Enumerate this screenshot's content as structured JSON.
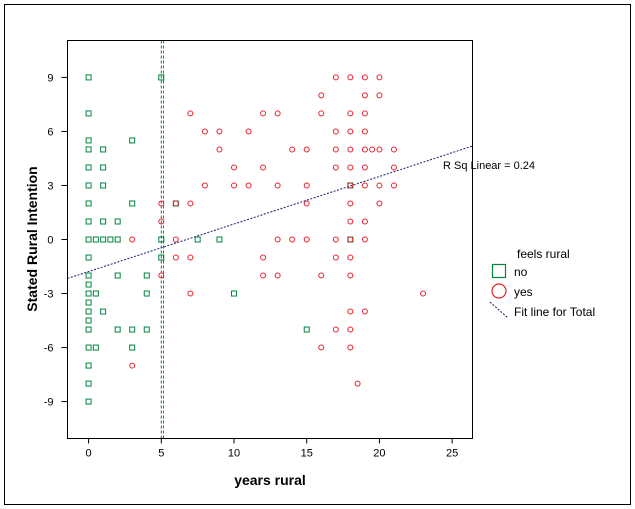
{
  "chart_data": {
    "type": "scatter",
    "title": "",
    "xlabel": "years rural",
    "ylabel": "Stated Rural Intention",
    "xlim": [
      -1.45,
      26.4
    ],
    "ylim": [
      -11.05,
      11.05
    ],
    "xticks": [
      0,
      5,
      10,
      15,
      20,
      25
    ],
    "yticks": [
      -9,
      -6,
      -3,
      0,
      3,
      6,
      9
    ],
    "grid": false,
    "legend": {
      "title": "feels rural",
      "placement": "right",
      "entries": [
        {
          "label": "no",
          "marker": "square",
          "color": "#00853e"
        },
        {
          "label": "yes",
          "marker": "circle",
          "color": "#e8202a"
        },
        {
          "label": "Fit line for Total",
          "marker": "dashed-line",
          "color": "#1a1a6e"
        }
      ]
    },
    "annotation": "R Sq Linear = 0.24",
    "fit_line": {
      "intercept": -1.78,
      "slope": 0.264,
      "color": "#1a1a6e"
    },
    "reference_lines": [
      {
        "x": 5.0,
        "color": "#00853e"
      },
      {
        "x": 5.15,
        "color": "#e8202a"
      }
    ],
    "series": [
      {
        "name": "no",
        "marker": "square",
        "color": "#00853e",
        "points": [
          [
            0,
            9
          ],
          [
            5,
            9
          ],
          [
            0,
            7
          ],
          [
            0,
            5.5
          ],
          [
            3,
            5.5
          ],
          [
            0,
            5
          ],
          [
            1,
            5
          ],
          [
            0,
            4
          ],
          [
            1,
            4
          ],
          [
            0,
            3
          ],
          [
            1,
            3
          ],
          [
            0,
            2
          ],
          [
            3,
            2
          ],
          [
            6,
            2
          ],
          [
            0,
            1
          ],
          [
            1,
            1
          ],
          [
            2,
            1
          ],
          [
            0,
            0
          ],
          [
            0.5,
            0
          ],
          [
            1,
            0
          ],
          [
            1.5,
            0
          ],
          [
            2,
            0
          ],
          [
            5,
            0
          ],
          [
            7.5,
            0
          ],
          [
            9,
            0
          ],
          [
            0,
            -1
          ],
          [
            5,
            -1
          ],
          [
            0,
            -2
          ],
          [
            2,
            -2
          ],
          [
            4,
            -2
          ],
          [
            0,
            -2.5
          ],
          [
            0,
            -3
          ],
          [
            0.5,
            -3
          ],
          [
            4,
            -3
          ],
          [
            10,
            -3
          ],
          [
            0,
            -3.5
          ],
          [
            0,
            -4
          ],
          [
            1,
            -4
          ],
          [
            0,
            -4.5
          ],
          [
            0,
            -5
          ],
          [
            2,
            -5
          ],
          [
            3,
            -5
          ],
          [
            4,
            -5
          ],
          [
            0,
            -6
          ],
          [
            0.5,
            -6
          ],
          [
            3,
            -6
          ],
          [
            0,
            -7
          ],
          [
            0,
            -8
          ],
          [
            0,
            -9
          ],
          [
            18,
            3
          ],
          [
            18,
            0
          ],
          [
            15,
            -5
          ]
        ]
      },
      {
        "name": "yes",
        "marker": "circle",
        "color": "#e8202a",
        "points": [
          [
            7,
            7
          ],
          [
            8,
            6
          ],
          [
            9,
            6
          ],
          [
            11,
            6
          ],
          [
            9,
            5
          ],
          [
            10,
            4
          ],
          [
            8,
            3
          ],
          [
            10,
            3
          ],
          [
            11,
            3
          ],
          [
            5,
            2
          ],
          [
            6,
            2
          ],
          [
            7,
            2
          ],
          [
            5,
            1
          ],
          [
            3,
            0
          ],
          [
            6,
            0
          ],
          [
            6,
            -1
          ],
          [
            7,
            -1
          ],
          [
            5,
            -2
          ],
          [
            7,
            -3
          ],
          [
            3,
            -7
          ],
          [
            17,
            9
          ],
          [
            18,
            9
          ],
          [
            19,
            9
          ],
          [
            20,
            9
          ],
          [
            16,
            8
          ],
          [
            19,
            8
          ],
          [
            20,
            8
          ],
          [
            12,
            7
          ],
          [
            13,
            7
          ],
          [
            16,
            7
          ],
          [
            18,
            7
          ],
          [
            19,
            7
          ],
          [
            17,
            6
          ],
          [
            18,
            6
          ],
          [
            19,
            6
          ],
          [
            14,
            5
          ],
          [
            15,
            5
          ],
          [
            17,
            5
          ],
          [
            18,
            5
          ],
          [
            19,
            5
          ],
          [
            19.5,
            5
          ],
          [
            20,
            5
          ],
          [
            21,
            5
          ],
          [
            12,
            4
          ],
          [
            17,
            4
          ],
          [
            18,
            4
          ],
          [
            19,
            4
          ],
          [
            21,
            4
          ],
          [
            13,
            3
          ],
          [
            15,
            3
          ],
          [
            18,
            3
          ],
          [
            19,
            3
          ],
          [
            20,
            3
          ],
          [
            21,
            3
          ],
          [
            15,
            2
          ],
          [
            18,
            2
          ],
          [
            20,
            2
          ],
          [
            18,
            1
          ],
          [
            19,
            1
          ],
          [
            13,
            0
          ],
          [
            14,
            0
          ],
          [
            15,
            0
          ],
          [
            17,
            0
          ],
          [
            18,
            0
          ],
          [
            19,
            0
          ],
          [
            12,
            -1
          ],
          [
            17,
            -1
          ],
          [
            18,
            -1
          ],
          [
            12,
            -2
          ],
          [
            13,
            -2
          ],
          [
            16,
            -2
          ],
          [
            18,
            -2
          ],
          [
            23,
            -3
          ],
          [
            18,
            -4
          ],
          [
            19,
            -4
          ],
          [
            17,
            -5
          ],
          [
            18,
            -5
          ],
          [
            16,
            -6
          ],
          [
            18,
            -6
          ],
          [
            18.5,
            -8
          ]
        ]
      }
    ]
  }
}
